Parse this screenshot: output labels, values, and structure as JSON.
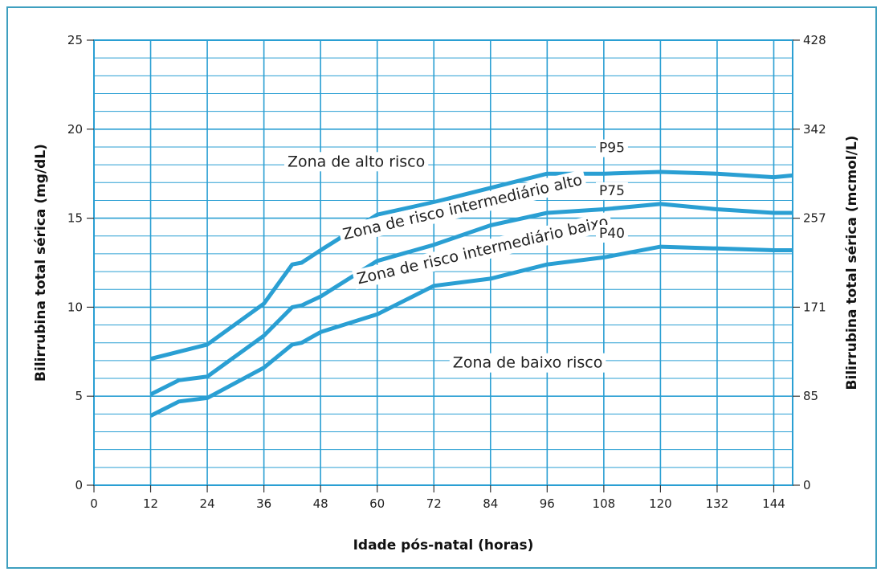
{
  "chart_data": {
    "type": "line",
    "xlabel": "Idade pós-natal (horas)",
    "ylabel": "Bilirrubina total sérica (mg/dL)",
    "y2label": "Bilirrubina total sérica  (mcmol/L)",
    "xlim": [
      0,
      148
    ],
    "ylim": [
      0,
      25
    ],
    "x_ticks": [
      0,
      12,
      24,
      36,
      48,
      60,
      72,
      84,
      96,
      108,
      120,
      132,
      144
    ],
    "y_ticks": [
      0,
      5,
      10,
      15,
      20,
      25
    ],
    "y2_ticks": [
      {
        "y": 0,
        "label": "0"
      },
      {
        "y": 5,
        "label": "85"
      },
      {
        "y": 10,
        "label": "171"
      },
      {
        "y": 15,
        "label": "257"
      },
      {
        "y": 20,
        "label": "342"
      },
      {
        "y": 25,
        "label": "428"
      }
    ],
    "grid": true,
    "series": [
      {
        "name": "P95",
        "color": "#2a9fd3",
        "points": [
          [
            12,
            7.1
          ],
          [
            18,
            7.5
          ],
          [
            24,
            7.9
          ],
          [
            36,
            10.2
          ],
          [
            42,
            12.4
          ],
          [
            44,
            12.5
          ],
          [
            48,
            13.2
          ],
          [
            60,
            15.2
          ],
          [
            72,
            15.9
          ],
          [
            84,
            16.7
          ],
          [
            96,
            17.5
          ],
          [
            108,
            17.5
          ],
          [
            120,
            17.6
          ],
          [
            132,
            17.5
          ],
          [
            144,
            17.3
          ],
          [
            148,
            17.4
          ]
        ]
      },
      {
        "name": "P75",
        "color": "#2a9fd3",
        "points": [
          [
            12,
            5.1
          ],
          [
            18,
            5.9
          ],
          [
            24,
            6.1
          ],
          [
            36,
            8.4
          ],
          [
            42,
            10
          ],
          [
            44,
            10.1
          ],
          [
            48,
            10.6
          ],
          [
            60,
            12.6
          ],
          [
            72,
            13.5
          ],
          [
            84,
            14.6
          ],
          [
            96,
            15.3
          ],
          [
            108,
            15.5
          ],
          [
            120,
            15.8
          ],
          [
            132,
            15.5
          ],
          [
            144,
            15.3
          ],
          [
            148,
            15.3
          ]
        ]
      },
      {
        "name": "P40",
        "color": "#2a9fd3",
        "points": [
          [
            12,
            3.9
          ],
          [
            18,
            4.7
          ],
          [
            24,
            4.9
          ],
          [
            36,
            6.6
          ],
          [
            42,
            7.9
          ],
          [
            44,
            8
          ],
          [
            48,
            8.6
          ],
          [
            60,
            9.6
          ],
          [
            72,
            11.2
          ],
          [
            84,
            11.6
          ],
          [
            96,
            12.4
          ],
          [
            108,
            12.8
          ],
          [
            120,
            13.4
          ],
          [
            132,
            13.3
          ],
          [
            144,
            13.2
          ],
          [
            148,
            13.2
          ]
        ]
      }
    ],
    "annotations": [
      {
        "text": "Zona de alto risco",
        "x": 41,
        "y": 17.9,
        "rotate": 0
      },
      {
        "text": "Zona de risco intermediário alto",
        "x": 53,
        "y": 13.8,
        "rotate": -13
      },
      {
        "text": "Zona de risco intermediário baixo",
        "x": 56,
        "y": 11.3,
        "rotate": -13
      },
      {
        "text": "Zona de baixo risco",
        "x": 76,
        "y": 6.6,
        "rotate": 0
      },
      {
        "text": "P95",
        "x": 107,
        "y": 18.7,
        "rotate": 0
      },
      {
        "text": "P75",
        "x": 107,
        "y": 16.3,
        "rotate": 0
      },
      {
        "text": "P40",
        "x": 107,
        "y": 13.9,
        "rotate": 0
      }
    ]
  }
}
